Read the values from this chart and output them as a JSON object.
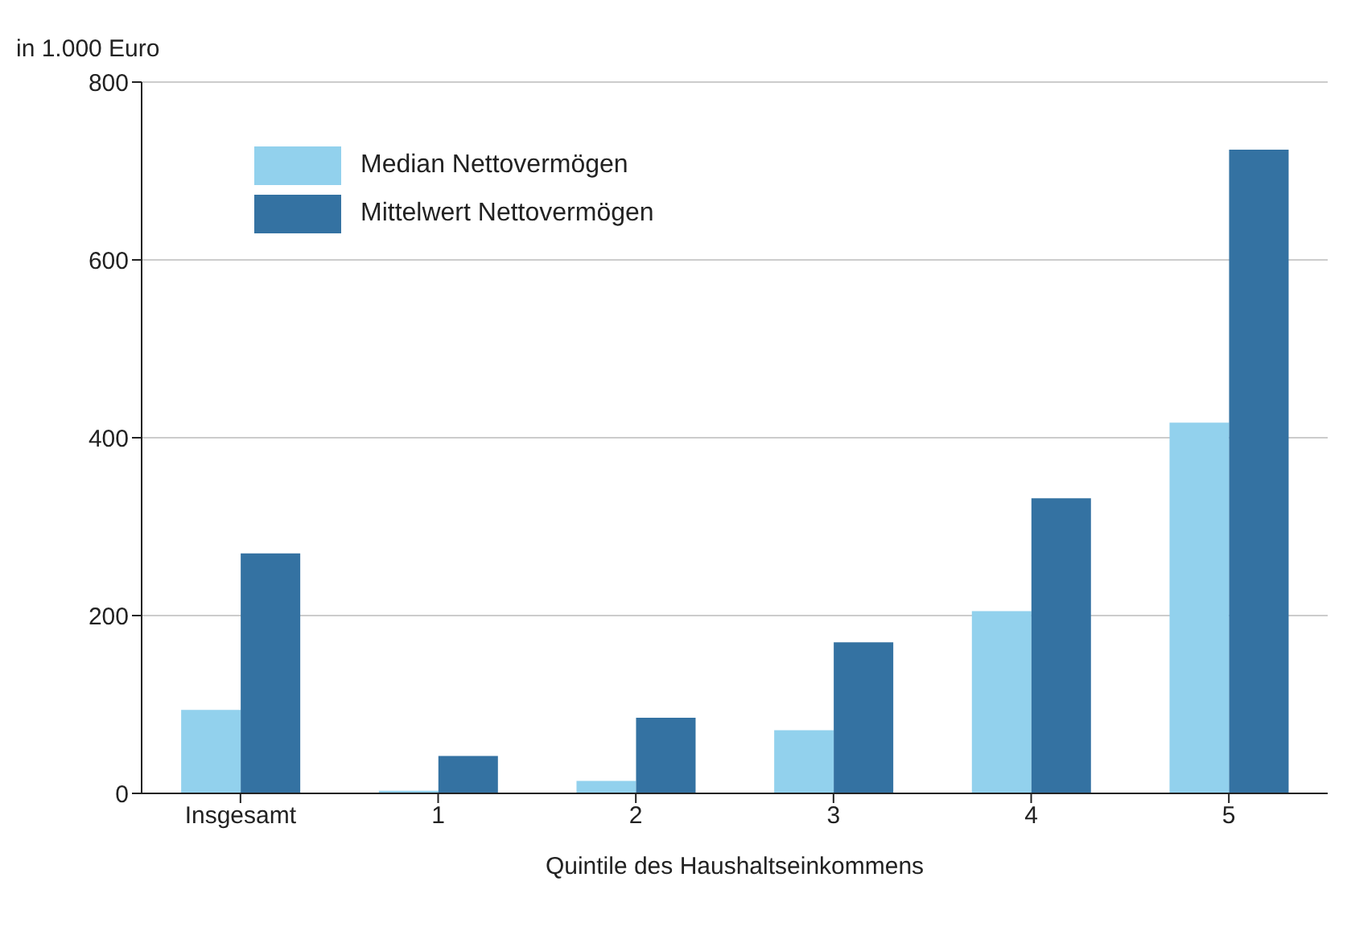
{
  "chart_data": {
    "type": "bar",
    "ylabel": "in 1.000 Euro",
    "xlabel": "Quintile des Haushaltseinkommens",
    "categories": [
      "Insgesamt",
      "1",
      "2",
      "3",
      "4",
      "5"
    ],
    "series": [
      {
        "name": "Median Nettovermögen",
        "color": "#92d1ed",
        "values": [
          94,
          3,
          14,
          71,
          205,
          417
        ]
      },
      {
        "name": "Mittelwert Nettovermögen",
        "color": "#3472a2",
        "values": [
          270,
          42,
          85,
          170,
          332,
          724
        ]
      }
    ],
    "ylim": [
      0,
      800
    ],
    "yticks": [
      0,
      200,
      400,
      600,
      800
    ],
    "grid": "y",
    "legend": "top left"
  }
}
